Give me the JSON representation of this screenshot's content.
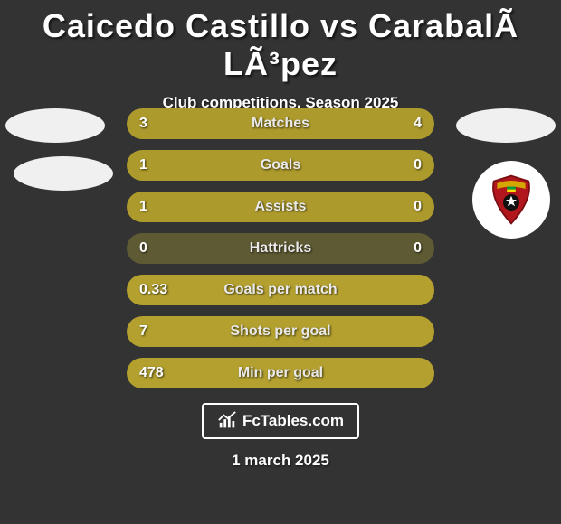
{
  "title": "Caicedo Castillo vs CarabalÃ LÃ³pez",
  "subtitle": "Club competitions, Season 2025",
  "colors": {
    "background": "#333333",
    "bar_track": "#5e5a33",
    "left_fill": "#ad9a2c",
    "left_fill_full": "#b3a02f",
    "right_fill": "#ad9a2c",
    "text": "#ffffff"
  },
  "rows": [
    {
      "label": "Matches",
      "left": "3",
      "right": "4",
      "left_pct": 40,
      "right_pct": 60
    },
    {
      "label": "Goals",
      "left": "1",
      "right": "0",
      "left_pct": 78,
      "right_pct": 22
    },
    {
      "label": "Assists",
      "left": "1",
      "right": "0",
      "left_pct": 78,
      "right_pct": 22
    },
    {
      "label": "Hattricks",
      "left": "0",
      "right": "0",
      "left_pct": 0,
      "right_pct": 0
    },
    {
      "label": "Goals per match",
      "left": "0.33",
      "right": "",
      "left_pct": 100,
      "right_pct": 0
    },
    {
      "label": "Shots per goal",
      "left": "7",
      "right": "",
      "left_pct": 100,
      "right_pct": 0
    },
    {
      "label": "Min per goal",
      "left": "478",
      "right": "",
      "left_pct": 100,
      "right_pct": 0
    }
  ],
  "footer_brand": "FcTables.com",
  "date": "1 march 2025",
  "badge": {
    "name": "club-crest",
    "bg": "#ffffff",
    "shield_fill": "#b0161b",
    "shield_stroke": "#7a0e12",
    "accent": "#d6a600",
    "ball": "#111111"
  }
}
